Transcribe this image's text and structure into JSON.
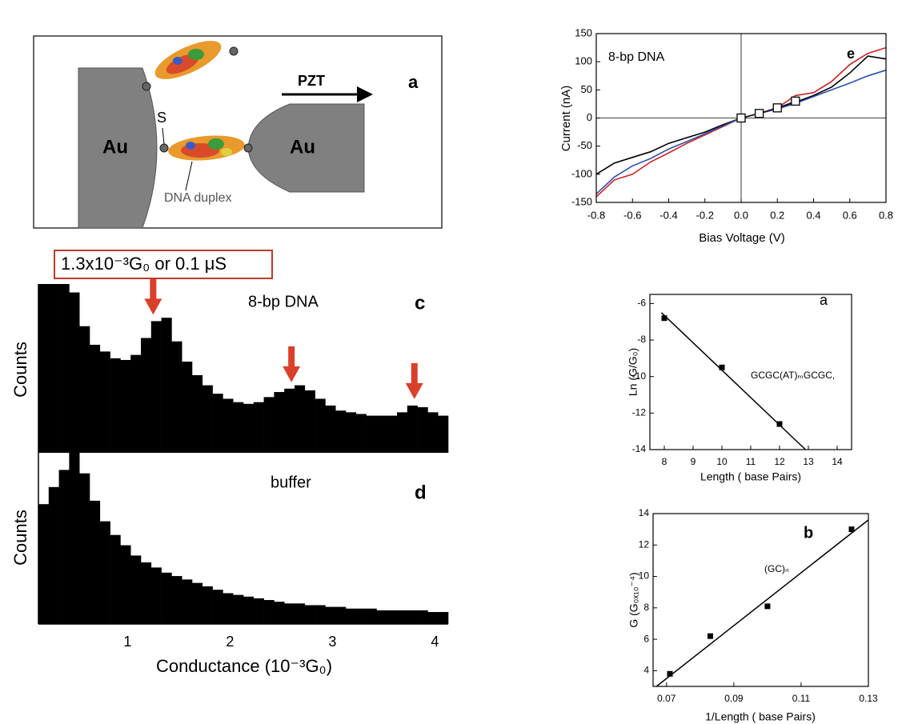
{
  "figure_a": {
    "electrode_left": "Au",
    "electrode_right": "Au",
    "sulfur": "S",
    "molecule": "DNA duplex",
    "actuator": "PZT",
    "panel": "a"
  },
  "chart_data": [
    {
      "type": "histogram",
      "annotation": "1.3x10⁻³G₀ or 0.1 μS",
      "label": "8-bp DNA",
      "panel": "c",
      "ylabel": "Counts",
      "color": "#000000",
      "bins": [
        0.13,
        0.23,
        0.33,
        0.43,
        0.53,
        0.63,
        0.73,
        0.83,
        0.93,
        1.03,
        1.13,
        1.23,
        1.33,
        1.43,
        1.53,
        1.63,
        1.73,
        1.83,
        1.93,
        2.03,
        2.13,
        2.23,
        2.33,
        2.43,
        2.53,
        2.63,
        2.73,
        2.83,
        2.93,
        3.03,
        3.13,
        3.23,
        3.33,
        3.43,
        3.53,
        3.63,
        3.73,
        3.83,
        3.93,
        4.03,
        4.13
      ],
      "values": [
        100,
        100,
        100,
        95,
        75,
        64,
        60,
        56,
        55,
        58,
        68,
        78,
        80,
        66,
        54,
        46,
        40,
        35,
        32,
        30,
        29,
        30,
        33,
        36,
        38,
        40,
        37,
        32,
        28,
        25,
        24,
        23,
        22,
        22,
        22,
        24,
        28,
        27,
        24,
        22
      ],
      "xlim": [
        0.13,
        4.13
      ],
      "ylim": [
        0,
        100
      ],
      "arrows": [
        1.25,
        2.6,
        3.8
      ],
      "arrow_color": "#d9402b"
    },
    {
      "type": "histogram",
      "label": "buffer",
      "panel": "d",
      "ylabel": "Counts",
      "xlabel": "Conductance (10⁻³G₀)",
      "color": "#000000",
      "bins": [
        0.13,
        0.23,
        0.33,
        0.43,
        0.53,
        0.63,
        0.73,
        0.83,
        0.93,
        1.03,
        1.13,
        1.23,
        1.33,
        1.43,
        1.53,
        1.63,
        1.73,
        1.83,
        1.93,
        2.03,
        2.13,
        2.23,
        2.33,
        2.43,
        2.53,
        2.63,
        2.73,
        2.83,
        2.93,
        3.03,
        3.13,
        3.23,
        3.33,
        3.43,
        3.53,
        3.63,
        3.73,
        3.83,
        3.93,
        4.03,
        4.13
      ],
      "values": [
        70,
        80,
        90,
        100,
        88,
        72,
        60,
        52,
        46,
        40,
        36,
        33,
        30,
        28,
        26,
        24,
        22,
        20,
        18,
        17,
        16,
        15,
        14,
        13,
        12,
        12,
        11,
        11,
        10,
        10,
        9,
        9,
        9,
        8,
        8,
        8,
        8,
        8,
        7,
        7
      ],
      "xlim": [
        0.13,
        4.13
      ],
      "ylim": [
        0,
        100
      ],
      "xticks": [
        1,
        2,
        3,
        4
      ]
    },
    {
      "type": "line",
      "label": "8-bp DNA",
      "panel": "e",
      "xlabel": "Bias Voltage (V)",
      "ylabel": "Current (nA)",
      "x": [
        -0.8,
        -0.7,
        -0.6,
        -0.5,
        -0.4,
        -0.3,
        -0.2,
        -0.1,
        0,
        0.1,
        0.2,
        0.3,
        0.4,
        0.5,
        0.6,
        0.7,
        0.8
      ],
      "series": [
        {
          "color": "#000000",
          "values": [
            -100,
            -80,
            -70,
            -60,
            -45,
            -35,
            -25,
            -12,
            0,
            8,
            18,
            28,
            40,
            55,
            80,
            110,
            105
          ]
        },
        {
          "color": "#cc2222",
          "values": [
            -140,
            -110,
            -100,
            -78,
            -62,
            -45,
            -30,
            -15,
            0,
            8,
            18,
            40,
            45,
            65,
            95,
            115,
            125
          ]
        },
        {
          "color": "#2f4fb0",
          "values": [
            -135,
            -105,
            -85,
            -72,
            -55,
            -42,
            -28,
            -14,
            0,
            8,
            16,
            26,
            38,
            50,
            62,
            75,
            85
          ]
        },
        {
          "color": "#000000",
          "marker": "square",
          "x": [
            0,
            0.1,
            0.2,
            0.3
          ],
          "values": [
            0,
            8,
            18,
            30
          ]
        }
      ],
      "xlim": [
        -0.8,
        0.8
      ],
      "ylim": [
        -150,
        150
      ],
      "xticks": [
        -0.8,
        -0.6,
        -0.4,
        -0.2,
        {
          "value": 0,
          "label": "0.0"
        },
        0.2,
        0.4,
        0.6,
        0.8
      ],
      "yticks": [
        -150,
        -100,
        -50,
        0,
        50,
        100,
        150
      ]
    },
    {
      "type": "scatter",
      "panel": "a",
      "annotation": "GCGC(AT)ₘGCGC,",
      "xlabel": "Length ( base Pairs)",
      "ylabel": "Ln (G/G₀)",
      "color": "#000000",
      "x": [
        8,
        10,
        12
      ],
      "values": [
        -6.8,
        -9.5,
        -12.6
      ],
      "fit": {
        "x": [
          7.9,
          12.9
        ],
        "y": [
          -6.5,
          -14
        ]
      },
      "xlim": [
        7.5,
        14.5
      ],
      "ylim": [
        -14,
        -5.5
      ],
      "xticks": [
        8,
        9,
        10,
        11,
        12,
        13,
        14
      ],
      "yticks": [
        -14,
        -12,
        -10,
        -8,
        -6
      ]
    },
    {
      "type": "scatter",
      "panel": "b",
      "annotation": "(GC)ₙ",
      "xlabel": "1/Length ( base Pairs)",
      "ylabel": "G (G₀ₓ₁₀⁻⁴)",
      "color": "#000000",
      "x": [
        0.071,
        0.083,
        0.1,
        0.125
      ],
      "values": [
        3.8,
        6.2,
        8.1,
        13
      ],
      "fit": {
        "x": [
          0.067,
          0.13
        ],
        "y": [
          3,
          13.6
        ]
      },
      "xlim": [
        0.066,
        0.13
      ],
      "ylim": [
        3,
        14
      ],
      "xticks": [
        0.07,
        0.09,
        0.11,
        0.13
      ],
      "yticks": [
        4,
        6,
        8,
        10,
        12,
        14
      ]
    }
  ]
}
